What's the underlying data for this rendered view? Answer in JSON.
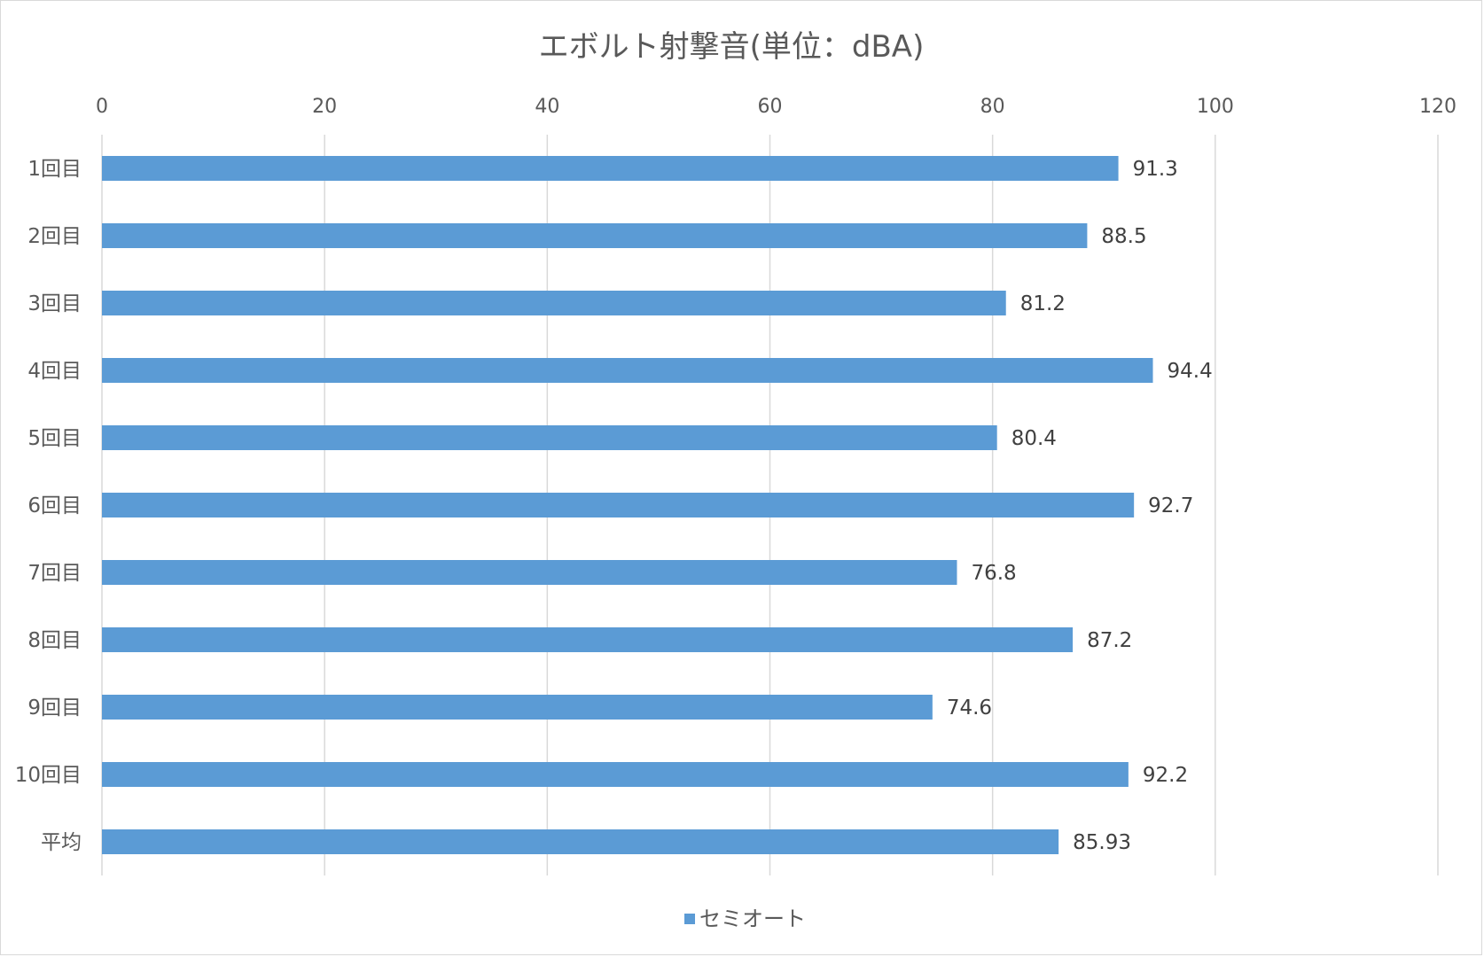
{
  "chart_data": {
    "type": "bar",
    "orientation": "horizontal",
    "title": "エボルト射撃音(単位：dBA)",
    "xlabel": "",
    "ylabel": "",
    "xlim": [
      0,
      120
    ],
    "x_ticks": [
      "0",
      "20",
      "40",
      "60",
      "80",
      "100",
      "120"
    ],
    "x_axis_position": "top",
    "grid": true,
    "categories": [
      "1回目",
      "2回目",
      "3回目",
      "4回目",
      "5回目",
      "6回目",
      "7回目",
      "8回目",
      "9回目",
      "10回目",
      "平均"
    ],
    "series": [
      {
        "name": "セミオート",
        "color": "#5b9bd5",
        "values": [
          91.3,
          88.5,
          81.2,
          94.4,
          80.4,
          92.7,
          76.8,
          87.2,
          74.6,
          92.2,
          85.93
        ],
        "labels": [
          "91.3",
          "88.5",
          "81.2",
          "94.4",
          "80.4",
          "92.7",
          "76.8",
          "87.2",
          "74.6",
          "92.2",
          "85.93"
        ]
      }
    ],
    "legend_position": "bottom"
  }
}
